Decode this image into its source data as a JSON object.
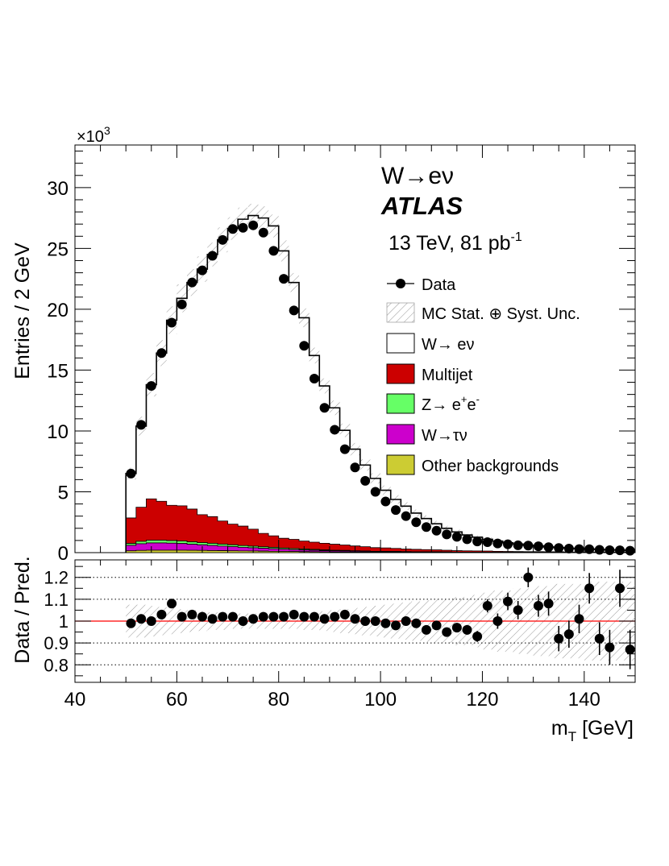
{
  "chart_data": [
    {
      "type": "stacked-histogram",
      "ylabel": "Entries / 2 GeV",
      "y_multiplier": "×10",
      "y_multiplier_exp": "3",
      "xlim": [
        40,
        150
      ],
      "ylim": [
        0,
        33.5
      ],
      "y_ticks": [
        0,
        5,
        10,
        15,
        20,
        25,
        30
      ],
      "y_tick_labels": [
        "0",
        "5",
        "10",
        "15",
        "20",
        "25",
        "30"
      ],
      "bin_edges": [
        50,
        52,
        54,
        56,
        58,
        60,
        62,
        64,
        66,
        68,
        70,
        72,
        74,
        76,
        78,
        80,
        82,
        84,
        86,
        88,
        90,
        92,
        94,
        96,
        98,
        100,
        102,
        104,
        106,
        108,
        110,
        112,
        114,
        116,
        118,
        120,
        122,
        124,
        126,
        128,
        130,
        132,
        134,
        136,
        138,
        140,
        142,
        144,
        146,
        148,
        150
      ],
      "annotations": {
        "channel": "W→eν",
        "experiment": "ATLAS",
        "lumi_text": "13 TeV, 81 pb",
        "lumi_exp": "-1"
      },
      "legend": {
        "placement": "top-right",
        "entries": [
          {
            "key": "data",
            "label": "Data"
          },
          {
            "key": "unc",
            "label": "MC Stat. ⊕ Syst. Unc."
          },
          {
            "key": "wenu",
            "label": "W→ eν",
            "color": "#ffffff"
          },
          {
            "key": "multijet",
            "label": "Multijet",
            "color": "#cc0000"
          },
          {
            "key": "zee",
            "label": "Z→ e+e-",
            "label_base": "Z→ e",
            "label_sup1": "+",
            "label_mid": "e",
            "label_sup2": "-",
            "color": "#66ff66"
          },
          {
            "key": "wtaunu",
            "label": "W→τν",
            "color": "#cc00cc"
          },
          {
            "key": "other",
            "label": "Other backgrounds",
            "color": "#cccc33"
          }
        ]
      },
      "series": [
        {
          "name": "Other backgrounds",
          "key": "other",
          "color": "#cccc33",
          "values": [
            0.15,
            0.18,
            0.2,
            0.2,
            0.2,
            0.2,
            0.19,
            0.18,
            0.17,
            0.16,
            0.15,
            0.14,
            0.13,
            0.12,
            0.11,
            0.1,
            0.09,
            0.08,
            0.07,
            0.06,
            0.05,
            0.05,
            0.04,
            0.04,
            0.03,
            0.03,
            0.03,
            0.02,
            0.02,
            0.02,
            0.02,
            0.02,
            0.01,
            0.01,
            0.01,
            0.01,
            0.01,
            0.01,
            0.01,
            0.01,
            0.01,
            0.01,
            0.01,
            0.01,
            0.01,
            0.01,
            0.01,
            0.01,
            0.01,
            0.01
          ]
        },
        {
          "name": "W→τν",
          "key": "wtaunu",
          "color": "#cc00cc",
          "values": [
            0.45,
            0.55,
            0.6,
            0.6,
            0.58,
            0.55,
            0.5,
            0.46,
            0.42,
            0.38,
            0.34,
            0.3,
            0.27,
            0.24,
            0.21,
            0.18,
            0.16,
            0.14,
            0.12,
            0.1,
            0.09,
            0.08,
            0.07,
            0.06,
            0.05,
            0.05,
            0.04,
            0.04,
            0.03,
            0.03,
            0.03,
            0.02,
            0.02,
            0.02,
            0.02,
            0.02,
            0.01,
            0.01,
            0.01,
            0.01,
            0.01,
            0.01,
            0.01,
            0.01,
            0.01,
            0.01,
            0.01,
            0.01,
            0.01,
            0.01
          ]
        },
        {
          "name": "Z→ e+e-",
          "key": "zee",
          "color": "#66ff66",
          "values": [
            0.15,
            0.2,
            0.22,
            0.22,
            0.21,
            0.2,
            0.19,
            0.18,
            0.17,
            0.16,
            0.15,
            0.14,
            0.13,
            0.12,
            0.11,
            0.1,
            0.09,
            0.08,
            0.07,
            0.06,
            0.05,
            0.05,
            0.04,
            0.04,
            0.03,
            0.03,
            0.03,
            0.02,
            0.02,
            0.02,
            0.02,
            0.02,
            0.01,
            0.01,
            0.01,
            0.01,
            0.01,
            0.01,
            0.01,
            0.01,
            0.01,
            0.01,
            0.01,
            0.01,
            0.01,
            0.01,
            0.01,
            0.01,
            0.01,
            0.01
          ]
        },
        {
          "name": "Multijet",
          "key": "multijet",
          "color": "#cc0000",
          "values": [
            2.1,
            2.8,
            3.4,
            3.2,
            2.9,
            2.9,
            2.7,
            2.3,
            2.2,
            1.9,
            1.7,
            1.6,
            1.4,
            1.1,
            0.95,
            0.8,
            0.75,
            0.65,
            0.6,
            0.55,
            0.5,
            0.45,
            0.4,
            0.35,
            0.3,
            0.28,
            0.25,
            0.22,
            0.2,
            0.18,
            0.16,
            0.14,
            0.12,
            0.11,
            0.1,
            0.09,
            0.08,
            0.07,
            0.06,
            0.05,
            0.05,
            0.04,
            0.04,
            0.03,
            0.03,
            0.03,
            0.02,
            0.02,
            0.02,
            0.02
          ]
        },
        {
          "name": "W→ eν",
          "key": "wenu",
          "color": "#ffffff",
          "values": [
            3.65,
            6.67,
            9.38,
            12.18,
            15.21,
            17.05,
            18.62,
            20.18,
            21.54,
            23.11,
            24.3,
            25.22,
            25.77,
            25.92,
            25.47,
            23.62,
            21.11,
            18.35,
            15.34,
            12.93,
            11.21,
            9.42,
            7.95,
            6.71,
            5.69,
            4.74,
            4.02,
            3.52,
            2.98,
            2.55,
            2.14,
            1.8,
            1.54,
            1.3,
            1.13,
            0.97,
            0.84,
            0.71,
            0.62,
            0.53,
            0.47,
            0.4,
            0.35,
            0.3,
            0.27,
            0.24,
            0.2,
            0.18,
            0.16,
            0.14
          ]
        }
      ],
      "data": {
        "name": "Data",
        "x": [
          51,
          53,
          55,
          57,
          59,
          61,
          63,
          65,
          67,
          69,
          71,
          73,
          75,
          77,
          79,
          81,
          83,
          85,
          87,
          89,
          91,
          93,
          95,
          97,
          99,
          101,
          103,
          105,
          107,
          109,
          111,
          113,
          115,
          117,
          119,
          121,
          123,
          125,
          127,
          129,
          131,
          133,
          135,
          137,
          139,
          141,
          143,
          145,
          147,
          149
        ],
        "y": [
          6.5,
          10.5,
          13.7,
          16.4,
          18.9,
          20.4,
          22.2,
          23.2,
          24.4,
          25.7,
          26.6,
          26.7,
          26.9,
          26.3,
          24.8,
          22.5,
          19.9,
          17.0,
          14.3,
          11.9,
          10.1,
          8.5,
          7.0,
          5.9,
          5.0,
          4.2,
          3.5,
          3.0,
          2.5,
          2.1,
          1.8,
          1.5,
          1.3,
          1.1,
          0.92,
          0.86,
          0.75,
          0.69,
          0.6,
          0.58,
          0.52,
          0.45,
          0.38,
          0.33,
          0.29,
          0.28,
          0.23,
          0.2,
          0.19,
          0.16
        ]
      }
    },
    {
      "type": "ratio",
      "ylabel": "Data / Pred.",
      "xlabel": "m",
      "xlabel_sub": "T",
      "xlabel_unit": " [GeV]",
      "xlim": [
        40,
        150
      ],
      "ylim": [
        0.72,
        1.28
      ],
      "x_ticks": [
        40,
        60,
        80,
        100,
        120,
        140
      ],
      "x_tick_labels": [
        "40",
        "60",
        "80",
        "100",
        "120",
        "140"
      ],
      "y_ticks": [
        0.8,
        0.9,
        1.0,
        1.1,
        1.2
      ],
      "y_tick_labels": [
        "0.8",
        "0.9",
        "1",
        "1.1",
        "1.2"
      ],
      "reference_line": 1.0,
      "reference_color": "#ff0000",
      "grid": "dotted horizontal",
      "x": [
        51,
        53,
        55,
        57,
        59,
        61,
        63,
        65,
        67,
        69,
        71,
        73,
        75,
        77,
        79,
        81,
        83,
        85,
        87,
        89,
        91,
        93,
        95,
        97,
        99,
        101,
        103,
        105,
        107,
        109,
        111,
        113,
        115,
        117,
        119,
        121,
        123,
        125,
        127,
        129,
        131,
        133,
        135,
        137,
        139,
        141,
        143,
        145,
        147,
        149
      ],
      "y": [
        0.99,
        1.01,
        1.0,
        1.03,
        1.08,
        1.02,
        1.03,
        1.02,
        1.01,
        1.02,
        1.02,
        1.0,
        1.01,
        1.02,
        1.02,
        1.02,
        1.03,
        1.02,
        1.02,
        1.01,
        1.02,
        1.03,
        1.01,
        1.0,
        1.0,
        0.99,
        0.98,
        1.0,
        0.99,
        0.96,
        0.98,
        0.95,
        0.97,
        0.96,
        0.93,
        1.07,
        1.0,
        1.09,
        1.05,
        1.2,
        1.07,
        1.08,
        0.92,
        0.94,
        1.01,
        1.15,
        0.92,
        0.88,
        1.15,
        0.87
      ],
      "err": [
        0.005,
        0.005,
        0.005,
        0.005,
        0.005,
        0.005,
        0.005,
        0.005,
        0.005,
        0.005,
        0.005,
        0.005,
        0.005,
        0.005,
        0.005,
        0.005,
        0.005,
        0.005,
        0.005,
        0.005,
        0.006,
        0.006,
        0.007,
        0.008,
        0.008,
        0.009,
        0.01,
        0.012,
        0.013,
        0.014,
        0.016,
        0.018,
        0.02,
        0.022,
        0.025,
        0.03,
        0.035,
        0.04,
        0.042,
        0.045,
        0.05,
        0.055,
        0.058,
        0.062,
        0.065,
        0.07,
        0.075,
        0.08,
        0.085,
        0.09
      ],
      "band": [
        0.075,
        0.075,
        0.07,
        0.065,
        0.06,
        0.055,
        0.05,
        0.045,
        0.04,
        0.04,
        0.035,
        0.035,
        0.035,
        0.035,
        0.035,
        0.035,
        0.035,
        0.04,
        0.04,
        0.045,
        0.05,
        0.055,
        0.06,
        0.065,
        0.07,
        0.075,
        0.08,
        0.085,
        0.09,
        0.095,
        0.1,
        0.1,
        0.11,
        0.11,
        0.12,
        0.13,
        0.14,
        0.14,
        0.15,
        0.15,
        0.16,
        0.16,
        0.17,
        0.17,
        0.17,
        0.18,
        0.18,
        0.18,
        0.18,
        0.18
      ]
    }
  ]
}
